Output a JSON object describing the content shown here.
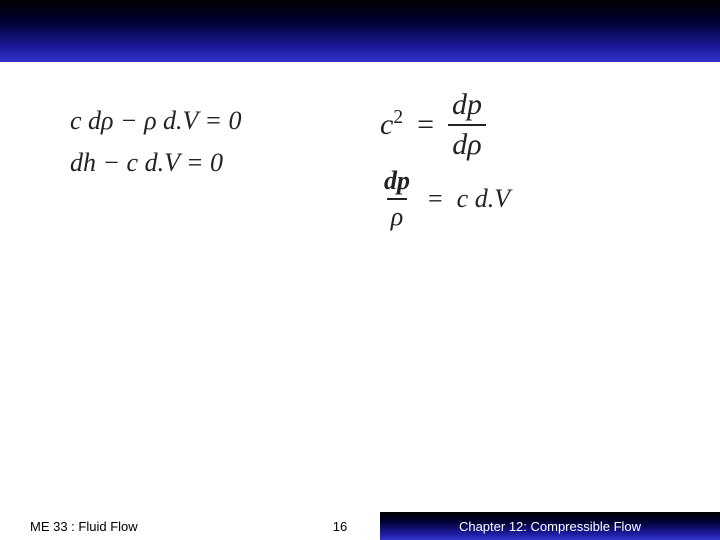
{
  "header": {
    "gradient_from": "#000000",
    "gradient_to": "#3333cc"
  },
  "equations": {
    "left": {
      "line1": "c dρ − ρ d.V = 0",
      "line2": "dh − c d.V = 0"
    },
    "right1": {
      "lhs_base": "c",
      "lhs_exp": "2",
      "eq": "=",
      "frac_num": "dp",
      "frac_den": "dρ"
    },
    "right2": {
      "frac_num": "dp",
      "frac_den": "ρ",
      "eq": "=",
      "rhs": "c d.V"
    },
    "font_family": "serif",
    "text_color": "#222222"
  },
  "footer": {
    "course": "ME 33 :  Fluid Flow",
    "page": "16",
    "chapter": "Chapter 12: Compressible Flow",
    "right_bg_from": "#000000",
    "right_bg_to": "#3333cc",
    "right_text_color": "#ffffff"
  }
}
